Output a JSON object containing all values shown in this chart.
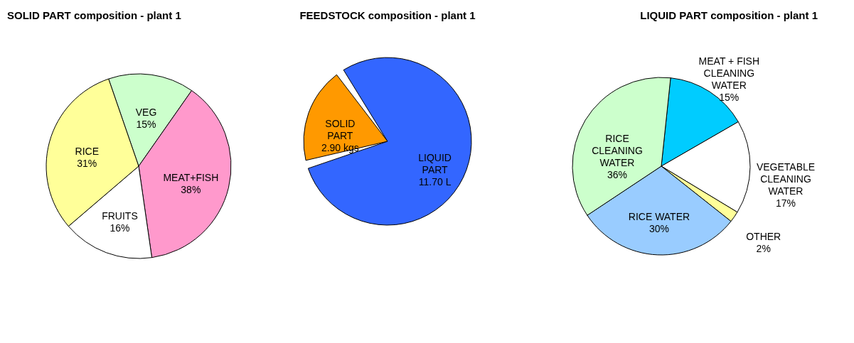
{
  "chart_data": [
    {
      "type": "pie",
      "title": "SOLID PART composition - plant 1",
      "categories": [
        "VEG",
        "MEAT+FISH",
        "FRUITS",
        "RICE"
      ],
      "values": [
        15,
        38,
        16,
        31
      ],
      "colors": [
        "#ccffcc",
        "#ff99cc",
        "#ffffff",
        "#ffff99"
      ],
      "value_labels": [
        "15%",
        "38%",
        "16%",
        "31%"
      ]
    },
    {
      "type": "pie",
      "title": "FEEDSTOCK composition - plant 1",
      "categories": [
        "SOLID PART",
        "LIQUID PART"
      ],
      "values": [
        2.9,
        11.7
      ],
      "colors": [
        "#ff9900",
        "#3366ff"
      ],
      "value_labels": [
        "2.90 kgs",
        "11.70 L"
      ]
    },
    {
      "type": "pie",
      "title": "LIQUID PART composition -  plant 1",
      "categories": [
        "MEAT + FISH CLEANING WATER",
        "VEGETABLE CLEANING WATER",
        "OTHER",
        "RICE WATER",
        "RICE CLEANING WATER"
      ],
      "values": [
        15,
        17,
        2,
        30,
        36
      ],
      "colors": [
        "#00ccff",
        "#ffffff",
        "#ffff99",
        "#99ccff",
        "#ccffcc"
      ],
      "value_labels": [
        "15%",
        "17%",
        "2%",
        "30%",
        "36%"
      ]
    }
  ]
}
